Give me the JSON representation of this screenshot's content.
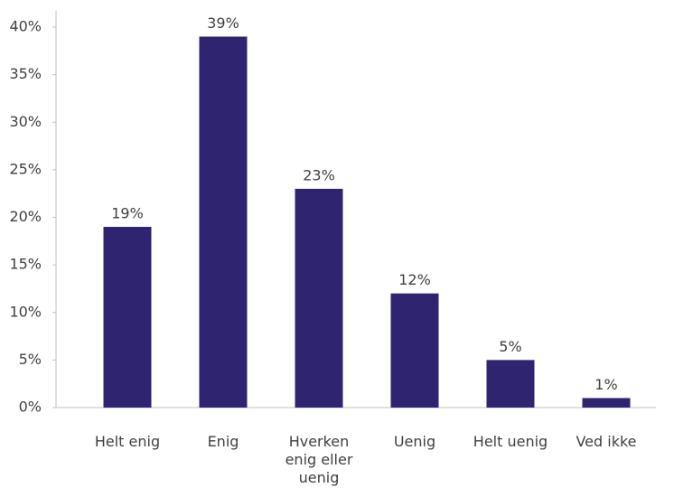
{
  "chart_data": {
    "type": "bar",
    "categories": [
      "Helt enig",
      "Enig",
      "Hverken enig eller uenig",
      "Uenig",
      "Helt uenig",
      "Ved ikke"
    ],
    "values": [
      19,
      39,
      23,
      12,
      5,
      1
    ],
    "value_labels": [
      "19%",
      "39%",
      "23%",
      "12%",
      "5%",
      "1%"
    ],
    "color": "#2e2470",
    "ylim": [
      0,
      40
    ],
    "yticks": [
      {
        "value": 0,
        "label": "0%"
      },
      {
        "value": 5,
        "label": "5%"
      },
      {
        "value": 10,
        "label": "10%"
      },
      {
        "value": 15,
        "label": "15%"
      },
      {
        "value": 20,
        "label": "20%"
      },
      {
        "value": 25,
        "label": "25%"
      },
      {
        "value": 30,
        "label": "30%"
      },
      {
        "value": 35,
        "label": "35%"
      },
      {
        "value": 40,
        "label": "40%"
      }
    ]
  }
}
